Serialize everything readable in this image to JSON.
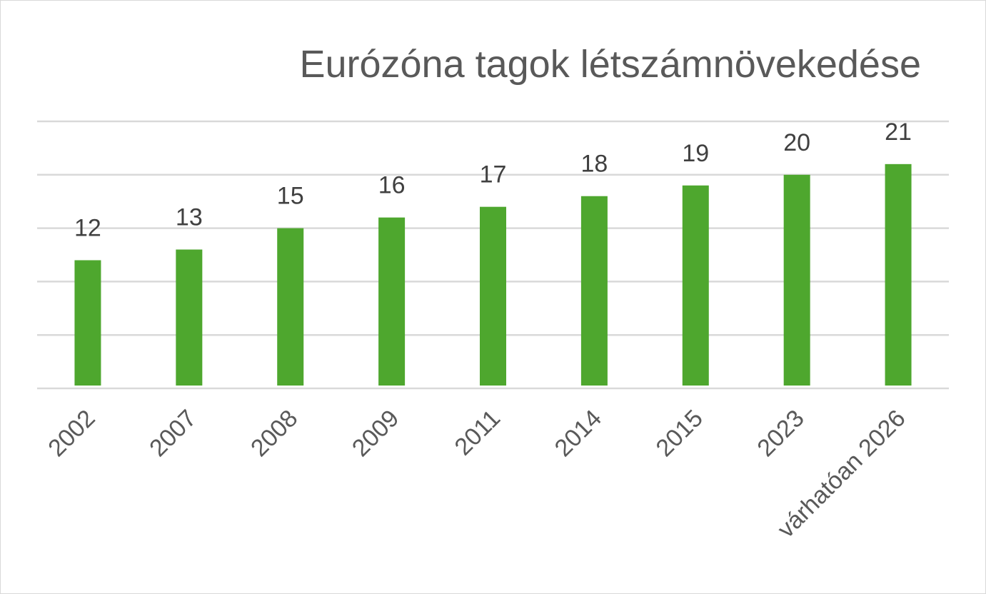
{
  "chart_data": {
    "type": "bar",
    "title": "Eurózóna tagok létszámnövekedése",
    "xlabel": "",
    "ylabel": "",
    "categories": [
      "2002",
      "2007",
      "2008",
      "2009",
      "2011",
      "2014",
      "2015",
      "2023",
      "várhatóan 2026"
    ],
    "values": [
      12,
      13,
      15,
      16,
      17,
      18,
      19,
      20,
      21
    ],
    "ylim": [
      0,
      25
    ],
    "grid": true,
    "legend": "none",
    "data_labels": true,
    "colors": {
      "bar": "#4EA72E",
      "grid": "#D9D9D9",
      "text": "#595959",
      "label": "#404040"
    }
  }
}
